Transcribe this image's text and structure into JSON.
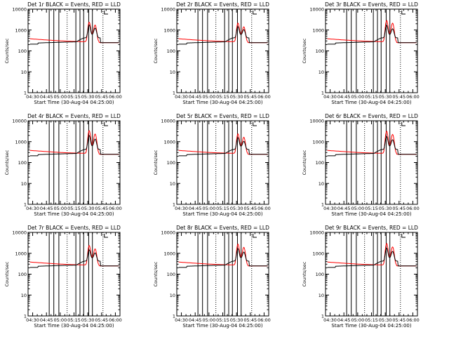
{
  "chart_data": [
    {
      "type": "line",
      "title": "Det 1r BLACK = Events, RED = LLD",
      "xlabel": "Start Time (30-Aug-04 04:25:00)",
      "ylabel": "Counts/sec",
      "ylim": [
        1,
        10000
      ],
      "yscale": "log",
      "xlim": [
        "04:25",
        "06:05"
      ],
      "series": [
        {
          "color": "#000000",
          "peaks": [
            1300,
            800
          ]
        },
        {
          "color": "#ff0000",
          "peaks": [
            2000,
            1400
          ]
        }
      ]
    },
    {
      "type": "line",
      "title": "Det 2r BLACK = Events, RED = LLD",
      "xlabel": "Start Time (30-Aug-04 04:25:00)",
      "ylabel": "Counts/sec",
      "ylim": [
        1,
        10000
      ],
      "yscale": "log",
      "xlim": [
        "04:25",
        "06:05"
      ],
      "series": [
        {
          "color": "#000000",
          "peaks": [
            1000,
            600
          ]
        },
        {
          "color": "#ff0000",
          "peaks": [
            1800,
            1100
          ]
        }
      ]
    },
    {
      "type": "line",
      "title": "Det 3r BLACK = Events, RED = LLD",
      "xlabel": "Start Time (30-Aug-04 04:25:00)",
      "ylabel": "Counts/sec",
      "ylim": [
        1,
        10000
      ],
      "yscale": "log",
      "xlim": [
        "04:25",
        "06:05"
      ],
      "series": [
        {
          "color": "#000000",
          "peaks": [
            1200,
            700
          ]
        },
        {
          "color": "#ff0000",
          "peaks": [
            2500,
            1800
          ]
        }
      ]
    },
    {
      "type": "line",
      "title": "Det 4r BLACK = Events, RED = LLD",
      "xlabel": "Start Time (30-Aug-04 04:25:00)",
      "ylabel": "Counts/sec",
      "ylim": [
        1,
        10000
      ],
      "yscale": "log",
      "xlim": [
        "04:25",
        "06:05"
      ],
      "series": [
        {
          "color": "#000000",
          "peaks": [
            1500,
            900
          ]
        },
        {
          "color": "#ff0000",
          "peaks": [
            3000,
            2000
          ]
        }
      ]
    },
    {
      "type": "line",
      "title": "Det 5r BLACK = Events, RED = LLD",
      "xlabel": "Start Time (30-Aug-04 04:25:00)",
      "ylabel": "Counts/sec",
      "ylim": [
        1,
        10000
      ],
      "yscale": "log",
      "xlim": [
        "04:25",
        "06:05"
      ],
      "series": [
        {
          "color": "#000000",
          "peaks": [
            1100,
            600
          ]
        },
        {
          "color": "#ff0000",
          "peaks": [
            2000,
            1300
          ]
        }
      ]
    },
    {
      "type": "line",
      "title": "Det 6r BLACK = Events, RED = LLD",
      "xlabel": "Start Time (30-Aug-04 04:25:00)",
      "ylabel": "Counts/sec",
      "ylim": [
        1,
        10000
      ],
      "yscale": "log",
      "xlim": [
        "04:25",
        "06:05"
      ],
      "series": [
        {
          "color": "#000000",
          "peaks": [
            1300,
            800
          ]
        },
        {
          "color": "#ff0000",
          "peaks": [
            2800,
            1900
          ]
        }
      ]
    },
    {
      "type": "line",
      "title": "Det 7r BLACK = Events, RED = LLD",
      "xlabel": "Start Time (30-Aug-04 04:25:00)",
      "ylabel": "Counts/sec",
      "ylim": [
        1,
        10000
      ],
      "yscale": "log",
      "xlim": [
        "04:25",
        "06:05"
      ],
      "series": [
        {
          "color": "#000000",
          "peaks": [
            1000,
            600
          ]
        },
        {
          "color": "#ff0000",
          "peaks": [
            2000,
            1300
          ]
        }
      ]
    },
    {
      "type": "line",
      "title": "Det 8r BLACK = Events, RED = LLD",
      "xlabel": "Start Time (30-Aug-04 04:25:00)",
      "ylabel": "Counts/sec",
      "ylim": [
        1,
        10000
      ],
      "yscale": "log",
      "xlim": [
        "04:25",
        "06:05"
      ],
      "series": [
        {
          "color": "#000000",
          "peaks": [
            1200,
            700
          ]
        },
        {
          "color": "#ff0000",
          "peaks": [
            2400,
            1600
          ]
        }
      ]
    },
    {
      "type": "line",
      "title": "Det 9r BLACK = Events, RED = LLD",
      "xlabel": "Start Time (30-Aug-04 04:25:00)",
      "ylabel": "Counts/sec",
      "ylim": [
        1,
        10000
      ],
      "yscale": "log",
      "xlim": [
        "04:25",
        "06:05"
      ],
      "series": [
        {
          "color": "#000000",
          "peaks": [
            1300,
            800
          ]
        },
        {
          "color": "#ff0000",
          "peaks": [
            2600,
            1700
          ]
        }
      ]
    }
  ],
  "y_ticks": [
    "1",
    "10",
    "100",
    "1000",
    "10000"
  ],
  "x_ticks": [
    "04:30",
    "04:45",
    "05:00",
    "05:15",
    "05:30",
    "05:45",
    "06:00"
  ]
}
